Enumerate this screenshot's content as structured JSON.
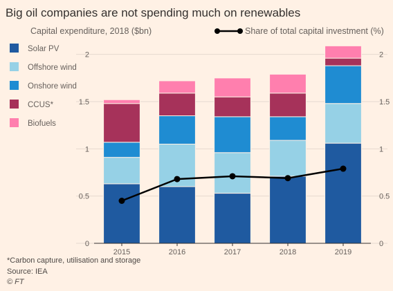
{
  "chart_data": {
    "type": "bar",
    "stacked": true,
    "title": "Big oil companies are not spending much on renewables",
    "left_axis_label": "Capital expenditure, 2018 ($bn)",
    "right_axis_label": "Share of total capital investment (%)",
    "categories": [
      "2015",
      "2016",
      "2017",
      "2018",
      "2019"
    ],
    "series": [
      {
        "name": "Solar PV",
        "color": "#1f5aa0",
        "values": [
          0.63,
          0.6,
          0.53,
          0.71,
          1.06
        ]
      },
      {
        "name": "Offshore wind",
        "color": "#96d1e6",
        "values": [
          0.28,
          0.45,
          0.43,
          0.38,
          0.42
        ]
      },
      {
        "name": "Onshore wind",
        "color": "#1f8cd2",
        "values": [
          0.16,
          0.3,
          0.38,
          0.25,
          0.4
        ]
      },
      {
        "name": "CCUS*",
        "color": "#a6325a",
        "values": [
          0.41,
          0.24,
          0.21,
          0.25,
          0.08
        ]
      },
      {
        "name": "Biofuels",
        "color": "#ff7fae",
        "values": [
          0.04,
          0.13,
          0.2,
          0.2,
          0.13
        ]
      }
    ],
    "line_series": {
      "name": "Share of total capital investment (%)",
      "color": "#000000",
      "values": [
        0.45,
        0.68,
        0.71,
        0.69,
        0.79
      ]
    },
    "ylim": [
      0,
      2.1
    ],
    "y_ticks": [
      "0",
      "0.5",
      "1",
      "1.5",
      "2"
    ],
    "y2_ticks": [
      "0",
      "0.5",
      "1",
      "1.5",
      "2"
    ],
    "footnote": "*Carbon capture, utilisation and storage",
    "source": "Source: IEA",
    "copyright": "© FT"
  }
}
